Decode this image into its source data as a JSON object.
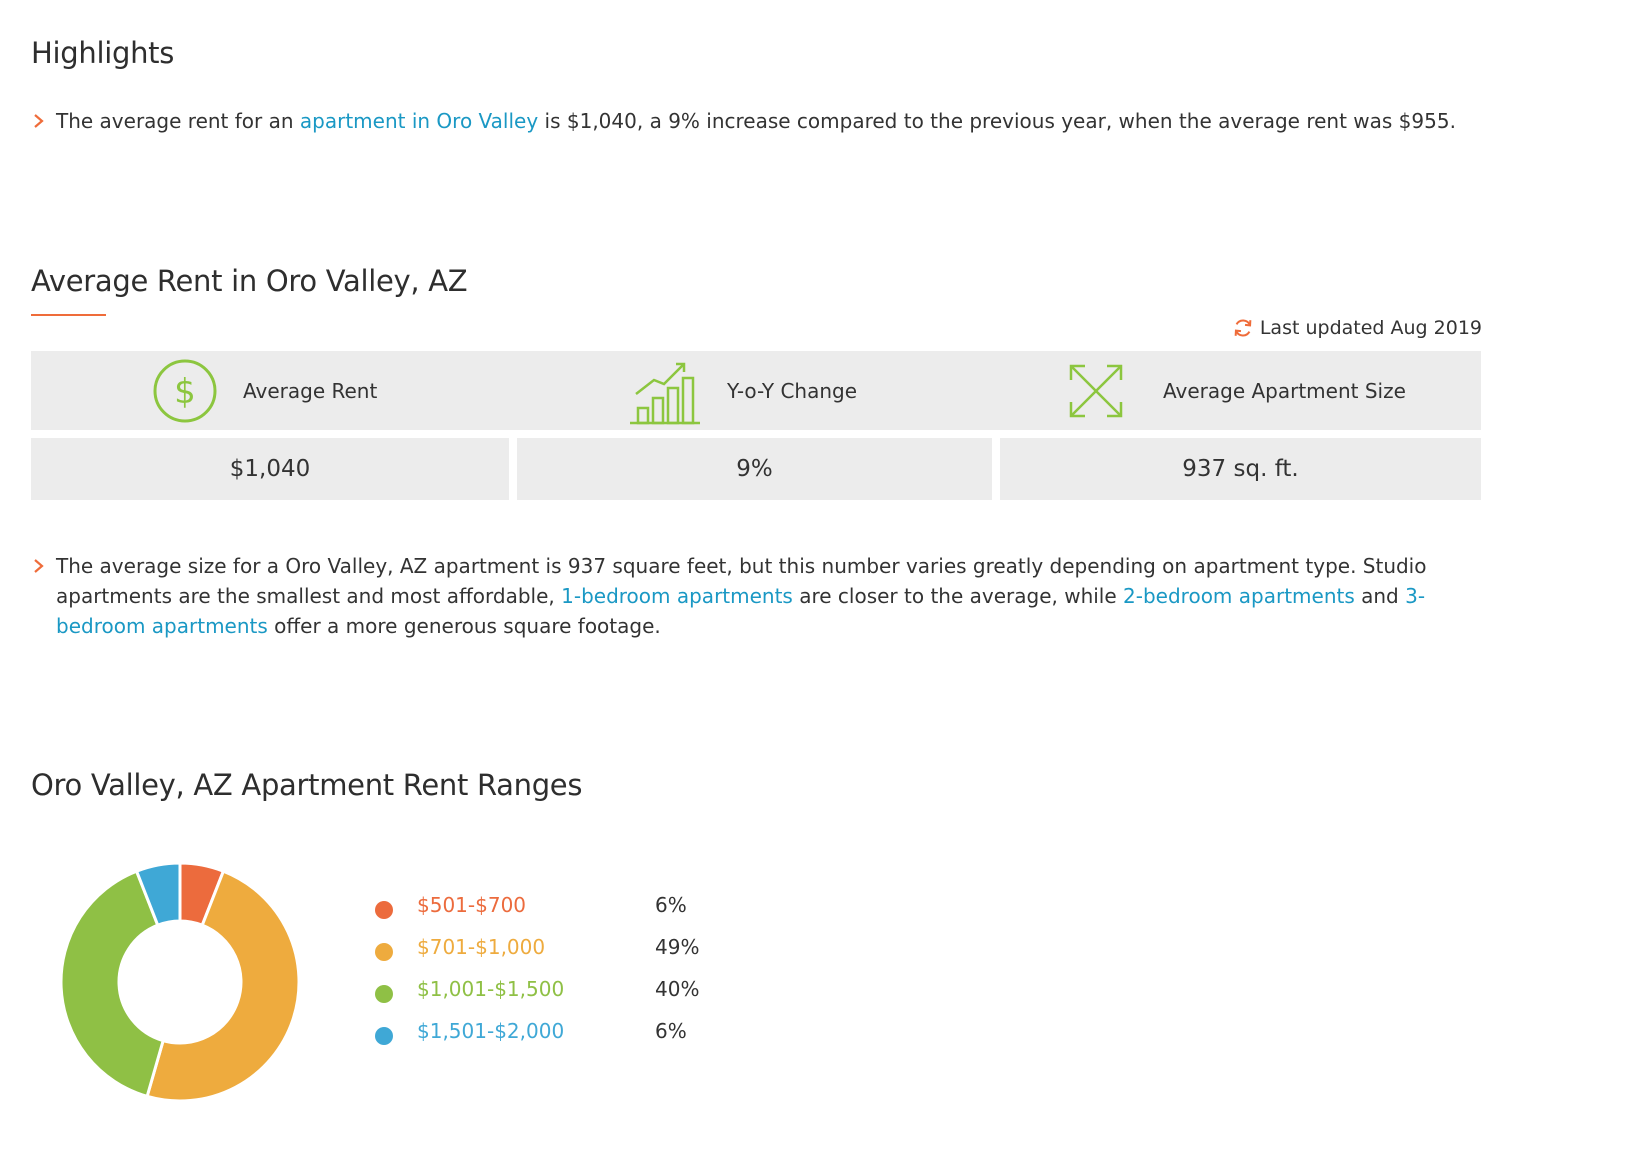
{
  "highlights": {
    "title": "Highlights",
    "item": {
      "before": "The average rent for an ",
      "link": "apartment in Oro Valley",
      "after": " is $1,040, a 9% increase compared to the previous year, when the average rent was $955."
    }
  },
  "average_rent": {
    "title": "Average Rent in Oro Valley, AZ",
    "last_updated": "Last updated Aug 2019",
    "stats": [
      {
        "label": "Average Rent",
        "value": "$1,040",
        "icon": "dollar-circle-icon"
      },
      {
        "label": "Y-o-Y Change",
        "value": "9%",
        "icon": "growth-chart-icon"
      },
      {
        "label": "Average Apartment Size",
        "value": "937 sq. ft.",
        "icon": "expand-arrows-icon"
      }
    ],
    "description": {
      "part1": "The average size for a Oro Valley, AZ apartment is 937 square feet, but this number varies greatly depending on apartment type. Studio apartments are the smallest and most affordable, ",
      "link1": "1-bedroom apartments",
      "part2": " are closer to the average, while ",
      "link2": "2-bedroom apartments",
      "part3": " and ",
      "link3": "3-bedroom apartments",
      "part4": " offer a more generous square footage."
    }
  },
  "rent_ranges": {
    "title": "Oro Valley, AZ Apartment Rent Ranges"
  },
  "colors": {
    "accent": "#ef6c3a",
    "link": "#1a98c4",
    "icon_green": "#8cc63f"
  },
  "chart_data": {
    "type": "pie",
    "categories": [
      "$501-$700",
      "$701-$1,000",
      "$1,001-$1,500",
      "$1,501-$2,000"
    ],
    "values": [
      6,
      49,
      40,
      6
    ],
    "labels": [
      "6%",
      "49%",
      "40%",
      "6%"
    ],
    "colors": [
      "#ec6b3d",
      "#eeab3e",
      "#8fc045",
      "#3fa8d6"
    ],
    "donut": true,
    "legend": "right"
  }
}
